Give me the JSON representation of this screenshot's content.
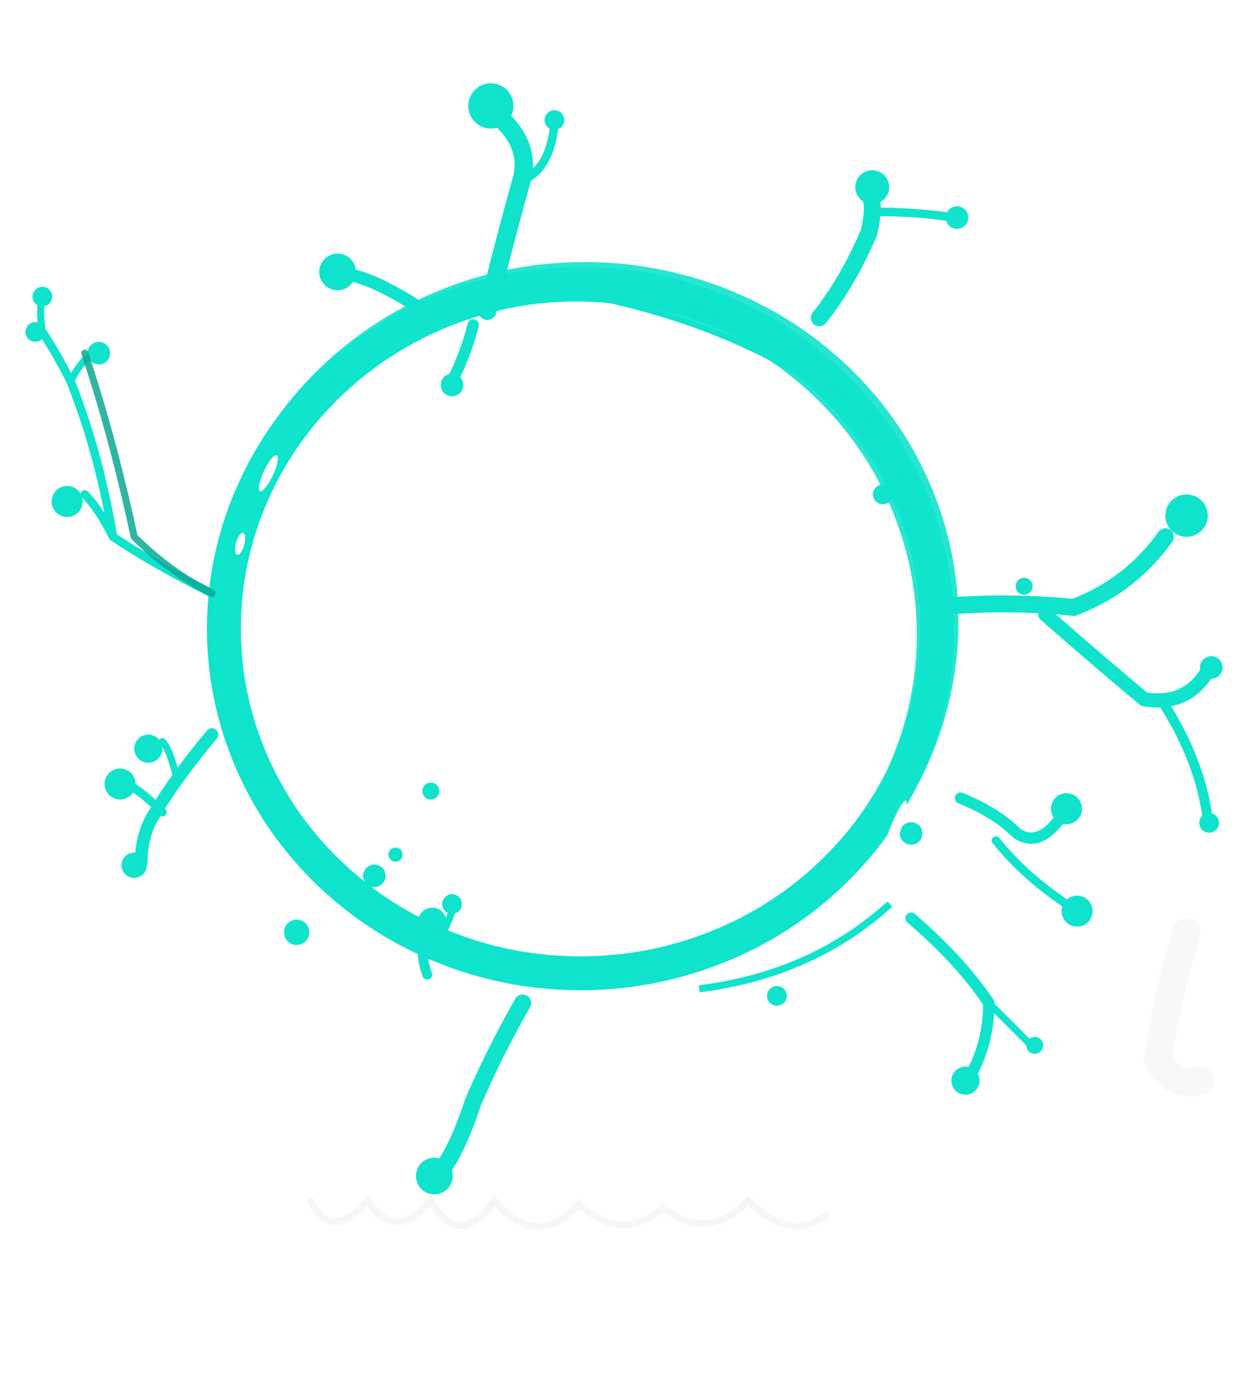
{
  "image": {
    "subject": "splash-ring",
    "colors": {
      "background": "#ffffff",
      "splash": "#0fe3cc",
      "splash_shadow": "#0aa894",
      "highlight": "#ffffff",
      "watermark": "#f2f2f2"
    }
  }
}
